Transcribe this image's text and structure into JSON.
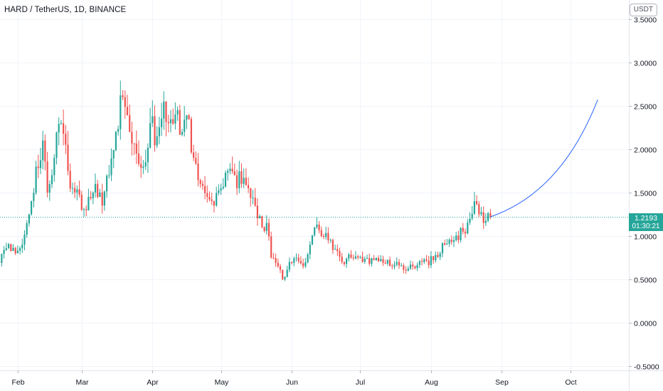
{
  "header": {
    "symbol_title": "HARD / TetherUS, 1D, BINANCE",
    "currency_button": "USDT"
  },
  "last_price": {
    "value": 1.2193,
    "label": "1.2193",
    "countdown": "01:30:21",
    "color": "#26a69a"
  },
  "colors": {
    "up": "#26a69a",
    "down": "#ef5350",
    "grid": "#f0f3fa",
    "axis_text": "#131722",
    "drawing": "#2962ff"
  },
  "chart_data": {
    "type": "candlestick",
    "ylim": [
      -0.55,
      3.72
    ],
    "yticks": [
      {
        "value": -0.5,
        "label": "-0.5000"
      },
      {
        "value": 0.0,
        "label": "0.0000"
      },
      {
        "value": 0.5,
        "label": "0.5000"
      },
      {
        "value": 1.0,
        "label": "1.0000"
      },
      {
        "value": 1.5,
        "label": "1.5000"
      },
      {
        "value": 2.0,
        "label": "2.0000"
      },
      {
        "value": 2.5,
        "label": "2.5000"
      },
      {
        "value": 3.0,
        "label": "3.0000"
      },
      {
        "value": 3.5,
        "label": "3.5000"
      }
    ],
    "first_date": "2021-01-23",
    "xticks": [
      {
        "date": "2021-02-01",
        "label": "Feb"
      },
      {
        "date": "2021-03-01",
        "label": "Mar"
      },
      {
        "date": "2021-04-01",
        "label": "Apr"
      },
      {
        "date": "2021-05-01",
        "label": "May"
      },
      {
        "date": "2021-06-01",
        "label": "Jun"
      },
      {
        "date": "2021-07-01",
        "label": "Jul"
      },
      {
        "date": "2021-08-01",
        "label": "Aug"
      },
      {
        "date": "2021-09-01",
        "label": "Sep"
      },
      {
        "date": "2021-10-01",
        "label": "Oct"
      }
    ],
    "close_anchors": [
      [
        "2021-01-23",
        0.7
      ],
      [
        "2021-01-27",
        0.86
      ],
      [
        "2021-01-31",
        0.8
      ],
      [
        "2021-02-03",
        0.9
      ],
      [
        "2021-02-06",
        1.25
      ],
      [
        "2021-02-09",
        1.8
      ],
      [
        "2021-02-12",
        2.1
      ],
      [
        "2021-02-14",
        1.5
      ],
      [
        "2021-02-17",
        1.9
      ],
      [
        "2021-02-20",
        2.3
      ],
      [
        "2021-02-23",
        1.75
      ],
      [
        "2021-02-26",
        1.5
      ],
      [
        "2021-03-01",
        1.3
      ],
      [
        "2021-03-04",
        1.45
      ],
      [
        "2021-03-07",
        1.6
      ],
      [
        "2021-03-10",
        1.35
      ],
      [
        "2021-03-13",
        1.7
      ],
      [
        "2021-03-16",
        2.2
      ],
      [
        "2021-03-19",
        2.6
      ],
      [
        "2021-03-22",
        2.2
      ],
      [
        "2021-03-25",
        1.95
      ],
      [
        "2021-03-28",
        1.8
      ],
      [
        "2021-03-31",
        2.3
      ],
      [
        "2021-04-03",
        2.15
      ],
      [
        "2021-04-06",
        2.55
      ],
      [
        "2021-04-08",
        2.3
      ],
      [
        "2021-04-11",
        2.4
      ],
      [
        "2021-04-14",
        2.2
      ],
      [
        "2021-04-17",
        2.35
      ],
      [
        "2021-04-19",
        1.9
      ],
      [
        "2021-04-22",
        1.6
      ],
      [
        "2021-04-25",
        1.45
      ],
      [
        "2021-04-28",
        1.35
      ],
      [
        "2021-05-01",
        1.55
      ],
      [
        "2021-05-04",
        1.75
      ],
      [
        "2021-05-07",
        1.7
      ],
      [
        "2021-05-10",
        1.6
      ],
      [
        "2021-05-13",
        1.55
      ],
      [
        "2021-05-16",
        1.35
      ],
      [
        "2021-05-19",
        1.1
      ],
      [
        "2021-05-21",
        1.15
      ],
      [
        "2021-05-23",
        0.75
      ],
      [
        "2021-05-26",
        0.65
      ],
      [
        "2021-05-28",
        0.5
      ],
      [
        "2021-05-31",
        0.7
      ],
      [
        "2021-06-03",
        0.75
      ],
      [
        "2021-06-06",
        0.65
      ],
      [
        "2021-06-09",
        0.9
      ],
      [
        "2021-06-11",
        1.1
      ],
      [
        "2021-06-14",
        1.0
      ],
      [
        "2021-06-17",
        0.95
      ],
      [
        "2021-06-20",
        0.85
      ],
      [
        "2021-06-23",
        0.7
      ],
      [
        "2021-06-27",
        0.75
      ],
      [
        "2021-07-02",
        0.7
      ],
      [
        "2021-07-07",
        0.72
      ],
      [
        "2021-07-12",
        0.68
      ],
      [
        "2021-07-17",
        0.7
      ],
      [
        "2021-07-21",
        0.6
      ],
      [
        "2021-07-24",
        0.65
      ],
      [
        "2021-07-28",
        0.7
      ],
      [
        "2021-08-02",
        0.72
      ],
      [
        "2021-08-07",
        0.9
      ],
      [
        "2021-08-11",
        0.95
      ],
      [
        "2021-08-15",
        1.05
      ],
      [
        "2021-08-18",
        1.2
      ],
      [
        "2021-08-20",
        1.4
      ],
      [
        "2021-08-22",
        1.25
      ],
      [
        "2021-08-24",
        1.15
      ],
      [
        "2021-08-27",
        1.2193
      ]
    ],
    "projection_curve": {
      "start": [
        "2021-08-27",
        1.22
      ],
      "control": [
        "2021-09-27",
        1.5
      ],
      "end": [
        "2021-10-13",
        2.57
      ]
    }
  }
}
